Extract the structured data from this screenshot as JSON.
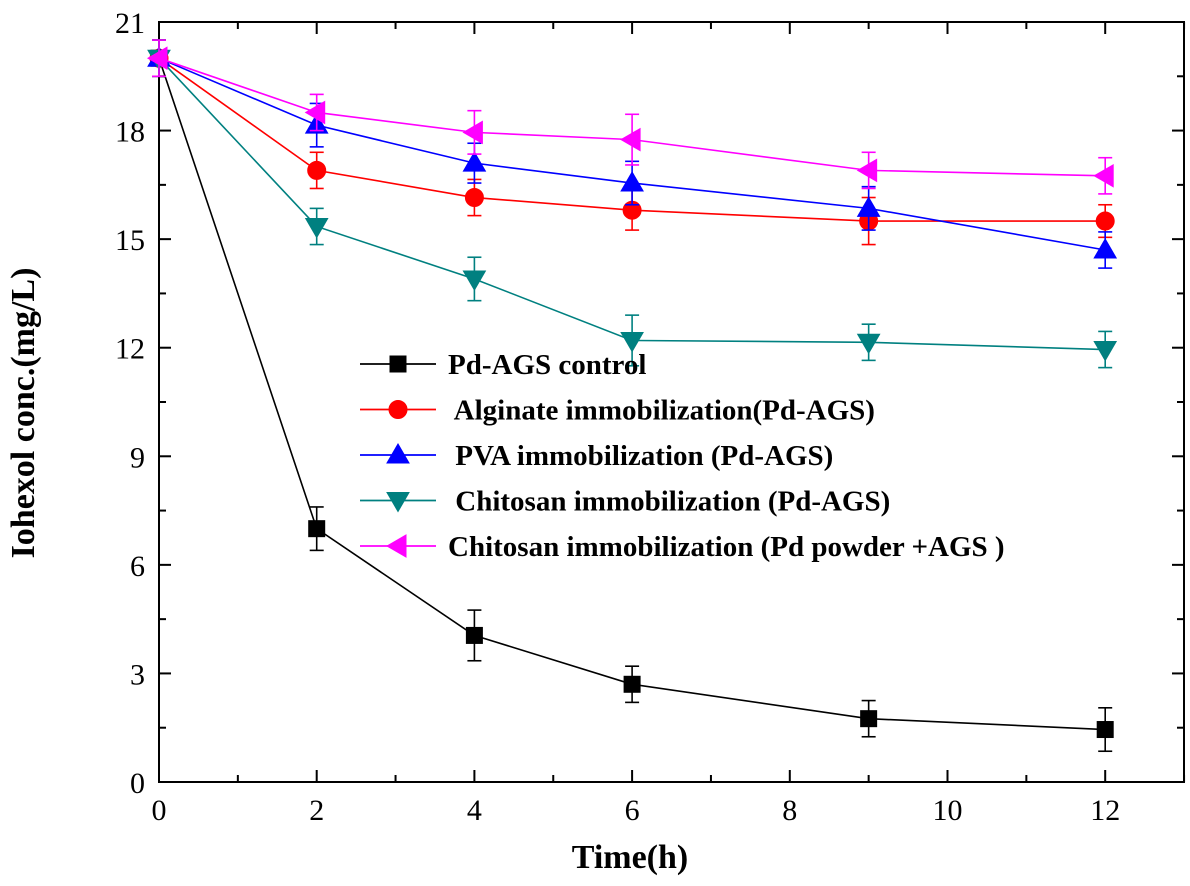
{
  "chart_data": {
    "type": "line",
    "title": "",
    "xlabel": "Time(h)",
    "ylabel": "Iohexol conc.(mg/L)",
    "xlim": [
      0,
      13
    ],
    "ylim": [
      0,
      21
    ],
    "xticks": [
      0,
      2,
      4,
      6,
      8,
      10,
      12
    ],
    "yticks": [
      0,
      3,
      6,
      9,
      12,
      15,
      18,
      21
    ],
    "grid": false,
    "legend_position": "center-right",
    "series": [
      {
        "name": "Pd-AGS control",
        "color": "#000000",
        "marker": "square",
        "x": [
          0,
          2,
          4,
          6,
          9,
          12
        ],
        "y": [
          20,
          7.0,
          4.05,
          2.7,
          1.75,
          1.45
        ],
        "err": [
          0.5,
          0.6,
          0.7,
          0.5,
          0.5,
          0.6
        ]
      },
      {
        "name": " Alginate immobilization(Pd-AGS)",
        "color": "#ff0000",
        "marker": "circle",
        "x": [
          0,
          2,
          4,
          6,
          9,
          12
        ],
        "y": [
          20,
          16.9,
          16.15,
          15.8,
          15.5,
          15.5
        ],
        "err": [
          0.5,
          0.5,
          0.5,
          0.55,
          0.65,
          0.45
        ]
      },
      {
        "name": " PVA immobilization (Pd-AGS)",
        "color": "#0000ff",
        "marker": "triangle-up",
        "x": [
          0,
          2,
          4,
          6,
          9,
          12
        ],
        "y": [
          20,
          18.15,
          17.1,
          16.55,
          15.85,
          14.7
        ],
        "err": [
          0.5,
          0.6,
          0.55,
          0.6,
          0.6,
          0.5
        ]
      },
      {
        "name": " Chitosan immobilization (Pd-AGS)",
        "color": "#008080",
        "marker": "triangle-down",
        "x": [
          0,
          2,
          4,
          6,
          9,
          12
        ],
        "y": [
          20,
          15.35,
          13.9,
          12.2,
          12.15,
          11.95
        ],
        "err": [
          0.5,
          0.5,
          0.6,
          0.7,
          0.5,
          0.5
        ]
      },
      {
        "name": "Chitosan immobilization (Pd powder +AGS )",
        "color": "#ff00ff",
        "marker": "triangle-left",
        "x": [
          0,
          2,
          4,
          6,
          9,
          12
        ],
        "y": [
          20,
          18.5,
          17.95,
          17.75,
          16.9,
          16.75
        ],
        "err": [
          0.5,
          0.5,
          0.6,
          0.7,
          0.5,
          0.5
        ]
      }
    ]
  }
}
